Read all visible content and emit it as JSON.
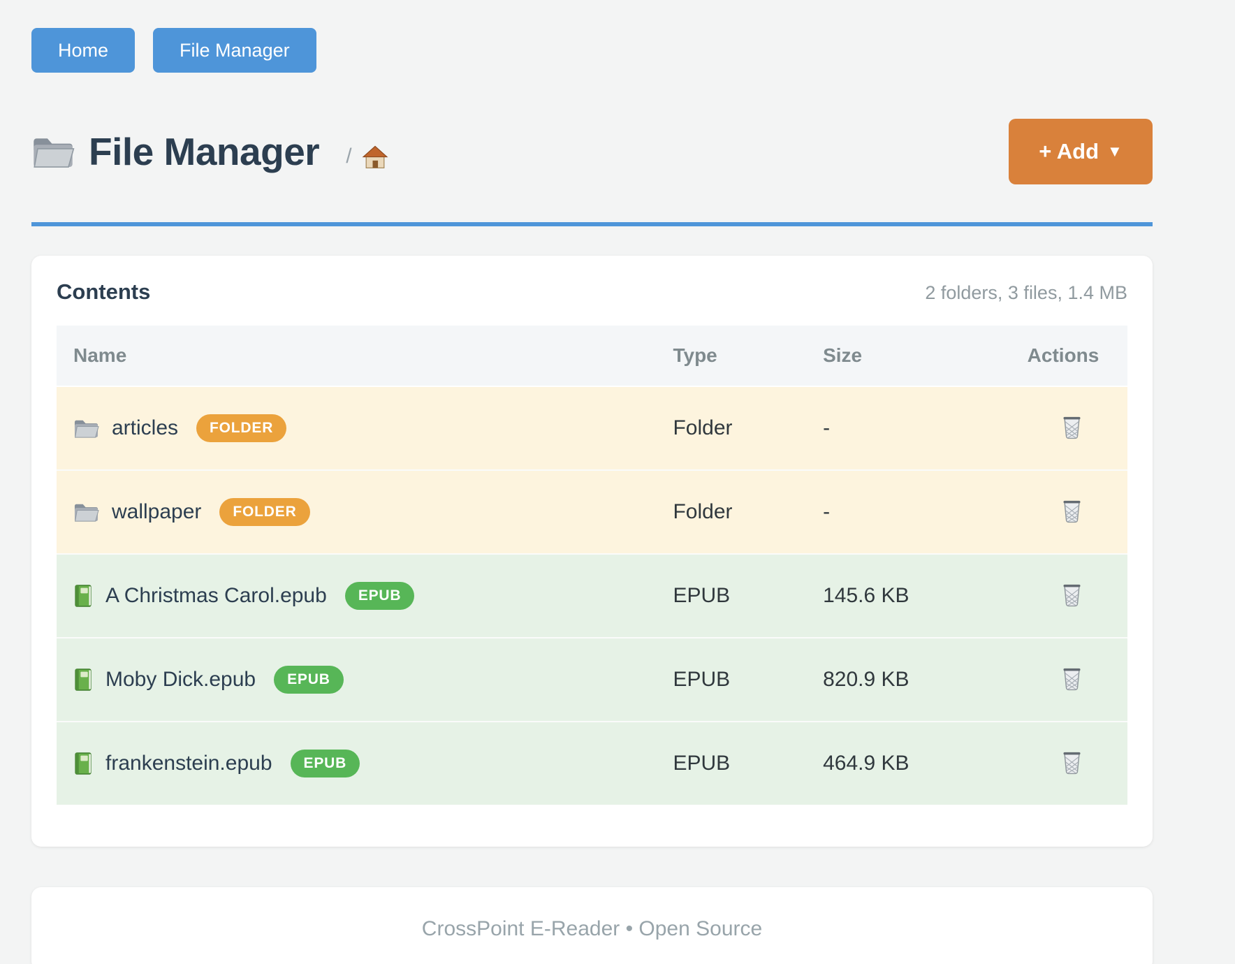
{
  "nav": {
    "buttons": [
      {
        "label": "Home"
      },
      {
        "label": "File Manager"
      }
    ]
  },
  "header": {
    "title": "File Manager",
    "breadcrumb_separator": "/",
    "add_button_label": "+ Add",
    "add_button_caret": "▼"
  },
  "contents": {
    "heading": "Contents",
    "summary": "2 folders, 3 files, 1.4 MB",
    "columns": [
      "Name",
      "Type",
      "Size",
      "Actions"
    ],
    "rows": [
      {
        "name": "articles",
        "badge": "FOLDER",
        "type": "Folder",
        "size": "-",
        "kind": "folder"
      },
      {
        "name": "wallpaper",
        "badge": "FOLDER",
        "type": "Folder",
        "size": "-",
        "kind": "folder"
      },
      {
        "name": "A Christmas Carol.epub",
        "badge": "EPUB",
        "type": "EPUB",
        "size": "145.6 KB",
        "kind": "epub"
      },
      {
        "name": "Moby Dick.epub",
        "badge": "EPUB",
        "type": "EPUB",
        "size": "820.9 KB",
        "kind": "epub"
      },
      {
        "name": "frankenstein.epub",
        "badge": "EPUB",
        "type": "EPUB",
        "size": "464.9 KB",
        "kind": "epub"
      }
    ]
  },
  "footer": {
    "text": "CrossPoint E-Reader • Open Source"
  },
  "icons": {
    "title": "folder-icon",
    "breadcrumb": "house-icon",
    "folder_row": "folder-icon",
    "epub_row": "green-book-icon",
    "delete": "trash-icon"
  },
  "colors": {
    "primary_blue": "#4e95d9",
    "accent_orange": "#d9813b",
    "badge_orange": "#eba23c",
    "badge_green": "#57b657",
    "folder_row_bg": "#fdf4de",
    "epub_row_bg": "#e6f2e6"
  }
}
